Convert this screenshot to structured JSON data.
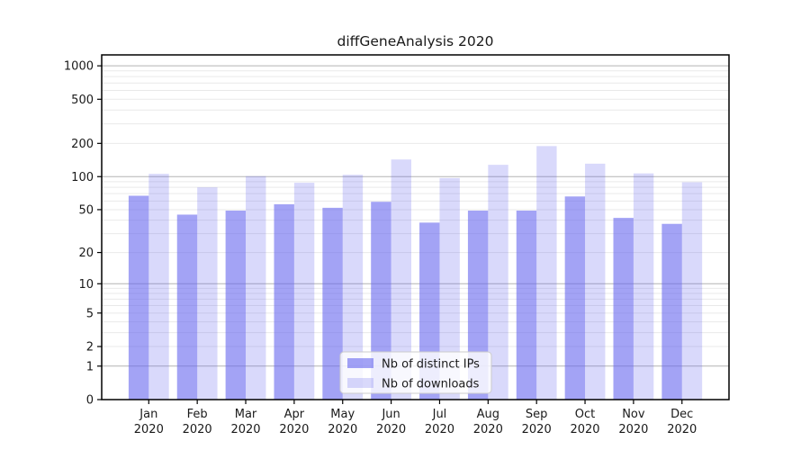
{
  "chart_data": {
    "type": "bar",
    "title": "diffGeneAnalysis 2020",
    "categories": [
      "Jan",
      "Feb",
      "Mar",
      "Apr",
      "May",
      "Jun",
      "Jul",
      "Aug",
      "Sep",
      "Oct",
      "Nov",
      "Dec"
    ],
    "category_year": "2020",
    "series": [
      {
        "name": "Nb of distinct IPs",
        "color": "rgba(102,102,238,0.60)",
        "values": [
          67,
          45,
          49,
          56,
          52,
          59,
          38,
          49,
          49,
          66,
          42,
          37
        ]
      },
      {
        "name": "Nb of downloads",
        "color": "rgba(102,102,238,0.25)",
        "values": [
          106,
          80,
          101,
          88,
          104,
          143,
          97,
          128,
          189,
          131,
          107,
          89
        ]
      }
    ],
    "y_scale": "symlog-log1p",
    "y_ticks": [
      0,
      1,
      2,
      5,
      10,
      20,
      50,
      100,
      200,
      500,
      1000
    ],
    "ylim": [
      0,
      1250
    ],
    "xlabel": "",
    "ylabel": "",
    "grid": true,
    "legend_position": "bottom-center",
    "colors": {
      "bar_base": "#6666ee",
      "grid_major": "#b3b3b3",
      "grid_minor": "#e9e9e9",
      "spine": "#000000",
      "text": "#1a1a1a",
      "legend_border": "#cccccc"
    }
  }
}
